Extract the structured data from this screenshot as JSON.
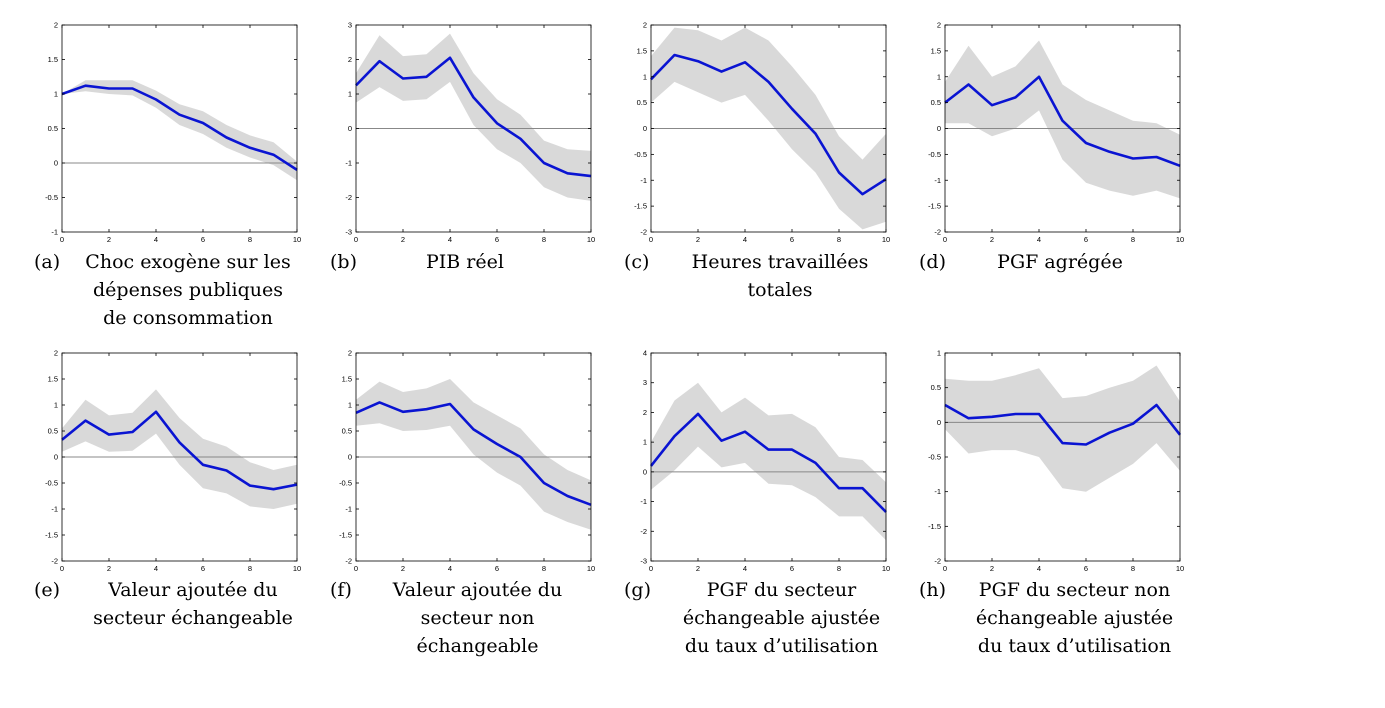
{
  "style": {
    "line_color": "#0a14d2",
    "band_color": "#d9d9d9",
    "zero_line_color": "#888888",
    "axis_color": "#000000"
  },
  "chart_data": [
    {
      "id": "a",
      "type": "line",
      "caption_letter": "(a)",
      "caption_lines": [
        "Choc exogène sur les",
        "dépenses publiques",
        "de consommation"
      ],
      "x": [
        0,
        1,
        2,
        3,
        4,
        5,
        6,
        7,
        8,
        9,
        10
      ],
      "xticks": [
        0,
        2,
        4,
        6,
        8,
        10
      ],
      "xlim": [
        0,
        10
      ],
      "ylim": [
        -1,
        2
      ],
      "yticks": [
        -1,
        -0.5,
        0,
        0.5,
        1,
        1.5,
        2
      ],
      "ytick_labels": [
        "-1",
        "-0.5",
        "0",
        "0.5",
        "1",
        "1.5",
        "2"
      ],
      "series": [
        {
          "values": [
            1.0,
            1.12,
            1.08,
            1.08,
            0.92,
            0.7,
            0.58,
            0.37,
            0.22,
            0.12,
            -0.1
          ]
        }
      ],
      "band": {
        "upper": [
          1.0,
          1.2,
          1.2,
          1.2,
          1.05,
          0.85,
          0.75,
          0.55,
          0.4,
          0.3,
          0.02
        ],
        "lower": [
          1.0,
          1.04,
          1.0,
          0.98,
          0.8,
          0.55,
          0.42,
          0.22,
          0.08,
          -0.03,
          -0.25
        ]
      }
    },
    {
      "id": "b",
      "type": "line",
      "caption_letter": "(b)",
      "caption_lines": [
        "PIB réel"
      ],
      "x": [
        0,
        1,
        2,
        3,
        4,
        5,
        6,
        7,
        8,
        9,
        10
      ],
      "xticks": [
        0,
        2,
        4,
        6,
        8,
        10
      ],
      "xlim": [
        0,
        10
      ],
      "ylim": [
        -3,
        3
      ],
      "yticks": [
        -3,
        -2,
        -1,
        0,
        1,
        2,
        3
      ],
      "ytick_labels": [
        "-3",
        "-2",
        "-1",
        "0",
        "1",
        "2",
        "3"
      ],
      "series": [
        {
          "values": [
            1.25,
            1.95,
            1.45,
            1.5,
            2.05,
            0.9,
            0.15,
            -0.3,
            -1.0,
            -1.3,
            -1.38
          ]
        }
      ],
      "band": {
        "upper": [
          1.6,
          2.7,
          2.1,
          2.15,
          2.75,
          1.6,
          0.85,
          0.4,
          -0.35,
          -0.6,
          -0.65
        ],
        "lower": [
          0.75,
          1.2,
          0.8,
          0.85,
          1.35,
          0.1,
          -0.6,
          -1.0,
          -1.7,
          -2.0,
          -2.1
        ]
      }
    },
    {
      "id": "c",
      "type": "line",
      "caption_letter": "(c)",
      "caption_lines": [
        "Heures travaillées",
        "totales"
      ],
      "x": [
        0,
        1,
        2,
        3,
        4,
        5,
        6,
        7,
        8,
        9,
        10
      ],
      "xticks": [
        0,
        2,
        4,
        6,
        8,
        10
      ],
      "xlim": [
        0,
        10
      ],
      "ylim": [
        -2,
        2
      ],
      "yticks": [
        -2,
        -1.5,
        -1,
        -0.5,
        0,
        0.5,
        1,
        1.5,
        2
      ],
      "ytick_labels": [
        "-2",
        "-1.5",
        "-1",
        "-0.5",
        "0",
        "0.5",
        "1",
        "1.5",
        "2"
      ],
      "series": [
        {
          "values": [
            0.95,
            1.42,
            1.3,
            1.1,
            1.28,
            0.9,
            0.38,
            -0.1,
            -0.85,
            -1.27,
            -0.98
          ]
        }
      ],
      "band": {
        "upper": [
          1.4,
          1.95,
          1.9,
          1.7,
          1.95,
          1.7,
          1.2,
          0.65,
          -0.15,
          -0.6,
          -0.1
        ],
        "lower": [
          0.5,
          0.9,
          0.7,
          0.5,
          0.65,
          0.15,
          -0.4,
          -0.85,
          -1.55,
          -1.95,
          -1.8
        ]
      }
    },
    {
      "id": "d",
      "type": "line",
      "caption_letter": "(d)",
      "caption_lines": [
        "PGF agrégée"
      ],
      "x": [
        0,
        1,
        2,
        3,
        4,
        5,
        6,
        7,
        8,
        9,
        10
      ],
      "xticks": [
        0,
        2,
        4,
        6,
        8,
        10
      ],
      "xlim": [
        0,
        10
      ],
      "ylim": [
        -2,
        2
      ],
      "yticks": [
        -2,
        -1.5,
        -1,
        -0.5,
        0,
        0.5,
        1,
        1.5,
        2
      ],
      "ytick_labels": [
        "-2",
        "-1.5",
        "-1",
        "-0.5",
        "0",
        "0.5",
        "1",
        "1.5",
        "2"
      ],
      "series": [
        {
          "values": [
            0.5,
            0.85,
            0.45,
            0.6,
            1.0,
            0.15,
            -0.28,
            -0.45,
            -0.58,
            -0.55,
            -0.72
          ]
        }
      ],
      "band": {
        "upper": [
          0.9,
          1.6,
          1.0,
          1.2,
          1.7,
          0.85,
          0.55,
          0.35,
          0.15,
          0.1,
          -0.12
        ],
        "lower": [
          0.1,
          0.1,
          -0.15,
          0.0,
          0.35,
          -0.6,
          -1.05,
          -1.2,
          -1.3,
          -1.2,
          -1.35
        ]
      }
    },
    {
      "id": "e",
      "type": "line",
      "caption_letter": "(e)",
      "caption_lines": [
        "Valeur ajoutée du",
        "secteur échangeable"
      ],
      "x": [
        0,
        1,
        2,
        3,
        4,
        5,
        6,
        7,
        8,
        9,
        10
      ],
      "xticks": [
        0,
        2,
        4,
        6,
        8,
        10
      ],
      "xlim": [
        0,
        10
      ],
      "ylim": [
        -2,
        2
      ],
      "yticks": [
        -2,
        -1.5,
        -1,
        -0.5,
        0,
        0.5,
        1,
        1.5,
        2
      ],
      "ytick_labels": [
        "-2",
        "-1.5",
        "-1",
        "-0.5",
        "0",
        "0.5",
        "1",
        "1.5",
        "2"
      ],
      "series": [
        {
          "values": [
            0.33,
            0.7,
            0.43,
            0.48,
            0.87,
            0.28,
            -0.15,
            -0.26,
            -0.55,
            -0.62,
            -0.53
          ]
        }
      ],
      "band": {
        "upper": [
          0.55,
          1.1,
          0.8,
          0.85,
          1.3,
          0.75,
          0.35,
          0.2,
          -0.1,
          -0.25,
          -0.15
        ],
        "lower": [
          0.1,
          0.3,
          0.1,
          0.12,
          0.45,
          -0.15,
          -0.6,
          -0.7,
          -0.95,
          -1.0,
          -0.9
        ]
      }
    },
    {
      "id": "f",
      "type": "line",
      "caption_letter": "(f)",
      "caption_lines": [
        "Valeur ajoutée du",
        "secteur non",
        "échangeable"
      ],
      "x": [
        0,
        1,
        2,
        3,
        4,
        5,
        6,
        7,
        8,
        9,
        10
      ],
      "xticks": [
        0,
        2,
        4,
        6,
        8,
        10
      ],
      "xlim": [
        0,
        10
      ],
      "ylim": [
        -2,
        2
      ],
      "yticks": [
        -2,
        -1.5,
        -1,
        -0.5,
        0,
        0.5,
        1,
        1.5,
        2
      ],
      "ytick_labels": [
        "-2",
        "-1.5",
        "-1",
        "-0.5",
        "0",
        "0.5",
        "1",
        "1.5",
        "2"
      ],
      "series": [
        {
          "values": [
            0.85,
            1.05,
            0.87,
            0.92,
            1.02,
            0.53,
            0.25,
            0.0,
            -0.5,
            -0.75,
            -0.92
          ]
        }
      ],
      "band": {
        "upper": [
          1.1,
          1.45,
          1.25,
          1.32,
          1.5,
          1.05,
          0.8,
          0.55,
          0.05,
          -0.25,
          -0.45
        ],
        "lower": [
          0.6,
          0.65,
          0.5,
          0.52,
          0.6,
          0.05,
          -0.3,
          -0.55,
          -1.05,
          -1.25,
          -1.4
        ]
      }
    },
    {
      "id": "g",
      "type": "line",
      "caption_letter": "(g)",
      "caption_lines": [
        "PGF du secteur",
        "échangeable ajustée",
        "du taux d’utilisation"
      ],
      "x": [
        0,
        1,
        2,
        3,
        4,
        5,
        6,
        7,
        8,
        9,
        10
      ],
      "xticks": [
        0,
        2,
        4,
        6,
        8,
        10
      ],
      "xlim": [
        0,
        10
      ],
      "ylim": [
        -3,
        4
      ],
      "yticks": [
        -3,
        -2,
        -1,
        0,
        1,
        2,
        3,
        4
      ],
      "ytick_labels": [
        "-3",
        "-2",
        "-1",
        "0",
        "1",
        "2",
        "3",
        "4"
      ],
      "series": [
        {
          "values": [
            0.2,
            1.2,
            1.95,
            1.05,
            1.35,
            0.75,
            0.75,
            0.3,
            -0.55,
            -0.55,
            -1.35
          ]
        }
      ],
      "band": {
        "upper": [
          1.0,
          2.4,
          3.0,
          2.0,
          2.5,
          1.9,
          1.95,
          1.5,
          0.5,
          0.4,
          -0.35
        ],
        "lower": [
          -0.6,
          0.05,
          0.85,
          0.15,
          0.3,
          -0.4,
          -0.45,
          -0.85,
          -1.5,
          -1.5,
          -2.3
        ]
      }
    },
    {
      "id": "h",
      "type": "line",
      "caption_letter": "(h)",
      "caption_lines": [
        "PGF du secteur non",
        "échangeable ajustée",
        "du taux d’utilisation"
      ],
      "x": [
        0,
        1,
        2,
        3,
        4,
        5,
        6,
        7,
        8,
        9,
        10
      ],
      "xticks": [
        0,
        2,
        4,
        6,
        8,
        10
      ],
      "xlim": [
        0,
        10
      ],
      "ylim": [
        -2,
        1
      ],
      "yticks": [
        -2,
        -1.5,
        -1,
        -0.5,
        0,
        0.5,
        1
      ],
      "ytick_labels": [
        "-2",
        "-1.5",
        "-1",
        "-0.5",
        "0",
        "0.5",
        "1"
      ],
      "series": [
        {
          "values": [
            0.25,
            0.06,
            0.08,
            0.12,
            0.12,
            -0.3,
            -0.32,
            -0.15,
            -0.02,
            0.25,
            -0.18
          ]
        }
      ],
      "band": {
        "upper": [
          0.63,
          0.6,
          0.6,
          0.68,
          0.78,
          0.35,
          0.38,
          0.5,
          0.6,
          0.82,
          0.3
        ],
        "lower": [
          -0.1,
          -0.45,
          -0.4,
          -0.4,
          -0.5,
          -0.95,
          -1.0,
          -0.8,
          -0.6,
          -0.3,
          -0.7
        ]
      }
    }
  ]
}
